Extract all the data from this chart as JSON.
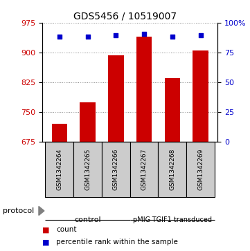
{
  "title": "GDS5456 / 10519007",
  "samples": [
    "GSM1342264",
    "GSM1342265",
    "GSM1342266",
    "GSM1342267",
    "GSM1342268",
    "GSM1342269"
  ],
  "counts": [
    720,
    775,
    893,
    940,
    835,
    905
  ],
  "percentiles_left": [
    940,
    940,
    943,
    947,
    940,
    943
  ],
  "ylim_left": [
    675,
    975
  ],
  "ylim_right": [
    0,
    100
  ],
  "yticks_left": [
    675,
    750,
    825,
    900,
    975
  ],
  "yticks_right": [
    0,
    25,
    50,
    75,
    100
  ],
  "ytick_labels_right": [
    "0",
    "25",
    "50",
    "75",
    "100%"
  ],
  "bar_color": "#cc0000",
  "dot_color": "#0000cc",
  "bar_width": 0.55,
  "group_colors": [
    "#bbffbb",
    "#44ee44"
  ],
  "group_labels": [
    "control",
    "pMIG-TGIF1 transduced"
  ],
  "group_ranges": [
    [
      0,
      2
    ],
    [
      3,
      5
    ]
  ],
  "protocol_label": "protocol",
  "legend_count_label": "count",
  "legend_percentile_label": "percentile rank within the sample",
  "grid_color": "#888888",
  "title_fontsize": 10,
  "tick_label_color_left": "#cc0000",
  "tick_label_color_right": "#0000cc",
  "sample_box_color": "#cccccc",
  "fig_width": 3.61,
  "fig_height": 3.63,
  "fig_dpi": 100
}
